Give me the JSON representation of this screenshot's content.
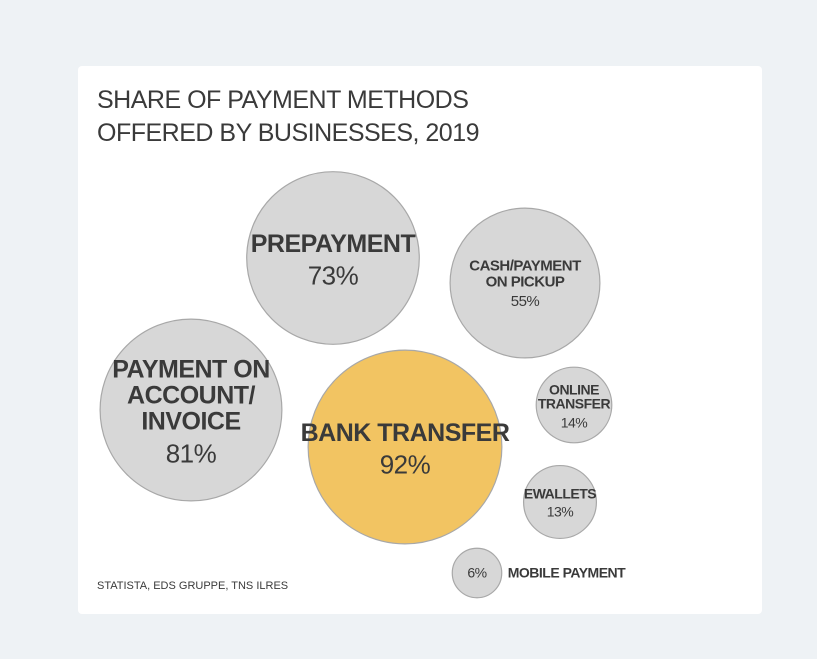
{
  "chart_data": {
    "type": "bubble",
    "title": "SHARE OF PAYMENT METHODS\nOFFERED BY BUSINESSES, 2019",
    "categories": [
      "BANK TRANSFER",
      "PAYMENT ON\nACCOUNT/\nINVOICE",
      "PREPAYMENT",
      "CASH/PAYMENT\nON PICKUP",
      "ONLINE\nTRANSFER",
      "EWALLETS",
      "MOBILE PAYMENT"
    ],
    "values": [
      92,
      81,
      73,
      55,
      14,
      13,
      6
    ],
    "value_labels": [
      "92%",
      "81%",
      "73%",
      "55%",
      "14%",
      "13%",
      "6%"
    ],
    "colors": [
      "#f2c462",
      "#d7d7d7",
      "#d7d7d7",
      "#d7d7d7",
      "#d7d7d7",
      "#d7d7d7",
      "#d7d7d7"
    ],
    "source": "STATISTA, EDS GRUPPE, TNS ILRES"
  }
}
